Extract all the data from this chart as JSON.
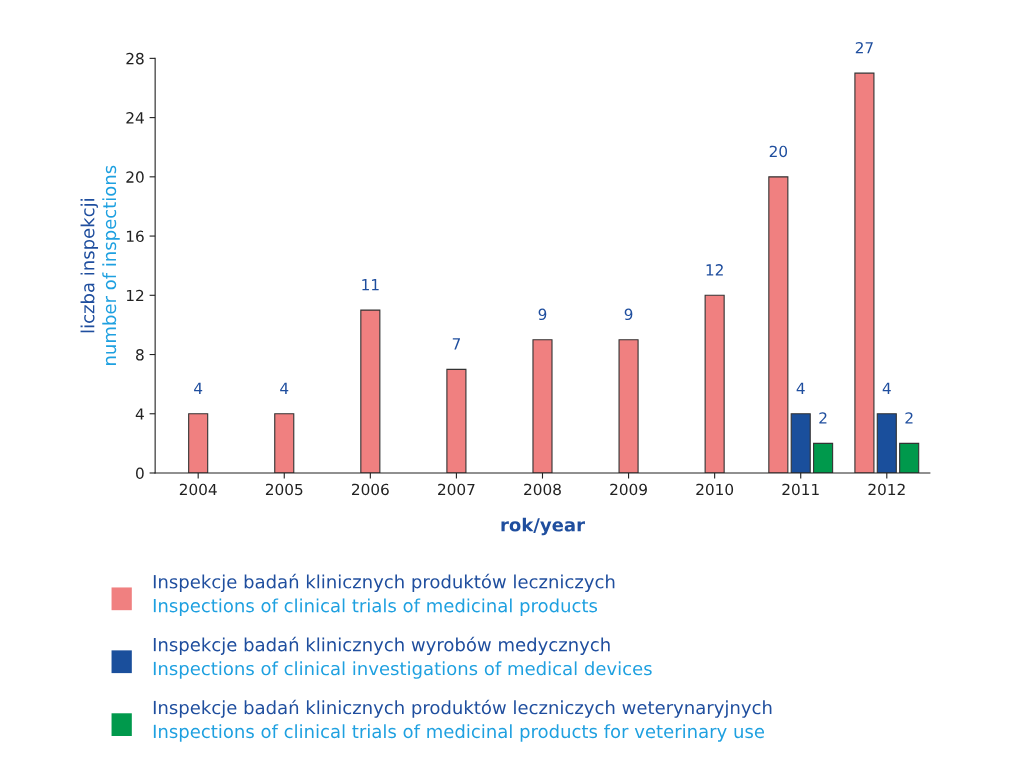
{
  "chart_data": {
    "type": "bar",
    "xlabel": "rok/year",
    "ylabel": "liczba inspekcji\nnumber of inspections",
    "categories": [
      "2004",
      "2005",
      "2006",
      "2007",
      "2008",
      "2009",
      "2010",
      "2011",
      "2012"
    ],
    "series": [
      {
        "name": "Inspekcje badań klinicznych produktów leczniczych\nInspections of clinical trials of medicinal products",
        "color": "#f08080",
        "values": [
          4,
          4,
          11,
          7,
          9,
          9,
          12,
          20,
          27
        ]
      },
      {
        "name": "Inspekcje badań klinicznych wyrobów medycznych\nInspections of clinical investigations of medical devices",
        "color": "#1a4f9c",
        "values": [
          null,
          null,
          null,
          null,
          null,
          null,
          null,
          4,
          4
        ]
      },
      {
        "name": "Inspekcje badań klinicznych produktów leczniczych weterynaryjnych\nInspections of clinical trials of medicinal products for veterinary use",
        "color": "#00994c",
        "values": [
          null,
          null,
          null,
          null,
          null,
          null,
          null,
          2,
          2
        ]
      }
    ],
    "ylim": [
      0,
      28
    ],
    "yticks": [
      0,
      4,
      8,
      12,
      16,
      20,
      24,
      28
    ],
    "data_labels": true,
    "grid": false,
    "legend": "bottom"
  }
}
